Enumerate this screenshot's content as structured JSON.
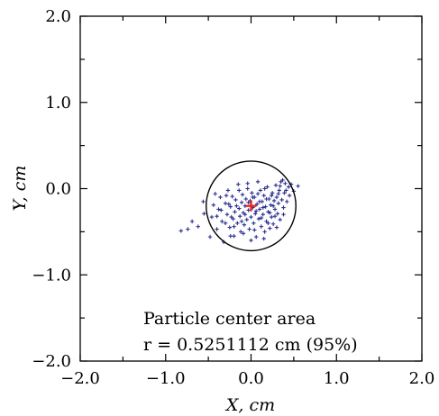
{
  "chart_data": {
    "type": "scatter",
    "xlabel": "X, cm",
    "ylabel": "Y, cm",
    "xlim": [
      -2.0,
      2.0
    ],
    "ylim": [
      -2.0,
      2.0
    ],
    "xticks": [
      "−2.0",
      "−1.0",
      "0.0",
      "1.0",
      "2.0"
    ],
    "yticks": [
      "−2.0",
      "−1.0",
      "0.0",
      "1.0",
      "2.0"
    ],
    "grid": false,
    "annotation_line1": "Particle center area",
    "annotation_line2": "r = 0.5251112 cm (95%)",
    "center": {
      "x": 0.0,
      "y": -0.2,
      "color": "#e8251f"
    },
    "circle": {
      "cx": 0.0,
      "cy": -0.2,
      "r": 0.5251112,
      "color": "#000000"
    },
    "series": [
      {
        "marker": "plus",
        "color": "#2b2f8f",
        "points": [
          [
            -0.82,
            -0.49
          ],
          [
            -0.74,
            -0.47
          ],
          [
            -0.69,
            -0.38
          ],
          [
            -0.62,
            -0.44
          ],
          [
            -0.56,
            -0.15
          ],
          [
            -0.55,
            -0.29
          ],
          [
            -0.48,
            -0.56
          ],
          [
            -0.46,
            -0.33
          ],
          [
            -0.44,
            -0.19
          ],
          [
            -0.42,
            -0.06
          ],
          [
            -0.4,
            -0.47
          ],
          [
            -0.38,
            -0.24
          ],
          [
            -0.36,
            -0.1
          ],
          [
            -0.34,
            -0.38
          ],
          [
            -0.32,
            -0.62
          ],
          [
            -0.3,
            -0.17
          ],
          [
            -0.28,
            -0.3
          ],
          [
            -0.27,
            -0.02
          ],
          [
            -0.25,
            -0.45
          ],
          [
            -0.24,
            -0.21
          ],
          [
            -0.22,
            -0.09
          ],
          [
            -0.21,
            -0.35
          ],
          [
            -0.2,
            -0.55
          ],
          [
            -0.19,
            -0.27
          ],
          [
            -0.18,
            -0.13
          ],
          [
            -0.16,
            -0.4
          ],
          [
            -0.15,
            0.05
          ],
          [
            -0.14,
            -0.23
          ],
          [
            -0.13,
            -0.32
          ],
          [
            -0.12,
            -0.5
          ],
          [
            -0.11,
            -0.16
          ],
          [
            -0.1,
            -0.07
          ],
          [
            -0.09,
            -0.28
          ],
          [
            -0.08,
            -0.42
          ],
          [
            -0.07,
            -0.2
          ],
          [
            -0.06,
            -0.12
          ],
          [
            -0.05,
            -0.36
          ],
          [
            -0.04,
            0.0
          ],
          [
            -0.03,
            -0.25
          ],
          [
            -0.02,
            -0.47
          ],
          [
            -0.01,
            -0.14
          ],
          [
            0.0,
            -0.33
          ],
          [
            0.01,
            -0.05
          ],
          [
            0.02,
            -0.22
          ],
          [
            0.03,
            -0.4
          ],
          [
            0.04,
            -0.1
          ],
          [
            0.05,
            -0.29
          ],
          [
            0.06,
            -0.56
          ],
          [
            0.07,
            -0.18
          ],
          [
            0.08,
            0.08
          ],
          [
            0.09,
            -0.35
          ],
          [
            0.1,
            -0.24
          ],
          [
            0.11,
            -0.02
          ],
          [
            0.12,
            -0.44
          ],
          [
            0.13,
            -0.15
          ],
          [
            0.14,
            -0.3
          ],
          [
            0.15,
            -0.08
          ],
          [
            0.16,
            -0.5
          ],
          [
            0.17,
            -0.21
          ],
          [
            0.18,
            -0.38
          ],
          [
            0.19,
            0.02
          ],
          [
            0.2,
            -0.27
          ],
          [
            0.21,
            -0.12
          ],
          [
            0.22,
            -0.46
          ],
          [
            0.23,
            -0.19
          ],
          [
            0.24,
            -0.33
          ],
          [
            0.25,
            -0.05
          ],
          [
            0.26,
            -0.41
          ],
          [
            0.27,
            -0.14
          ],
          [
            0.28,
            -0.24
          ],
          [
            0.29,
            0.04
          ],
          [
            0.3,
            -0.1
          ],
          [
            0.31,
            -0.29
          ],
          [
            0.32,
            -0.17
          ],
          [
            0.33,
            -0.02
          ],
          [
            0.34,
            -0.36
          ],
          [
            0.35,
            0.08
          ],
          [
            0.36,
            -0.13
          ],
          [
            0.37,
            0.1
          ],
          [
            0.38,
            -0.22
          ],
          [
            0.39,
            -0.05
          ],
          [
            0.4,
            0.06
          ],
          [
            0.42,
            -0.15
          ],
          [
            0.44,
            0.02
          ],
          [
            0.45,
            -0.08
          ],
          [
            0.47,
            0.05
          ],
          [
            0.5,
            -0.03
          ],
          [
            0.55,
            0.03
          ],
          [
            -0.3,
            -0.4
          ],
          [
            -0.26,
            -0.18
          ],
          [
            -0.23,
            -0.33
          ],
          [
            -0.17,
            -0.2
          ],
          [
            -0.11,
            -0.38
          ],
          [
            -0.07,
            -0.3
          ],
          [
            -0.03,
            -0.16
          ],
          [
            0.02,
            -0.1
          ],
          [
            0.06,
            -0.26
          ],
          [
            0.1,
            -0.15
          ],
          [
            0.14,
            -0.22
          ],
          [
            0.18,
            -0.12
          ],
          [
            0.22,
            -0.28
          ],
          [
            0.26,
            -0.2
          ],
          [
            -0.35,
            -0.25
          ],
          [
            -0.29,
            -0.08
          ],
          [
            -0.2,
            -0.44
          ],
          [
            -0.09,
            -0.52
          ],
          [
            0.04,
            -0.48
          ],
          [
            0.12,
            -0.34
          ],
          [
            0.2,
            -0.4
          ],
          [
            0.28,
            -0.32
          ],
          [
            -0.14,
            -0.02
          ],
          [
            -0.04,
            0.06
          ],
          [
            0.08,
            -0.06
          ],
          [
            0.16,
            0.0
          ],
          [
            0.24,
            -0.08
          ],
          [
            0.32,
            -0.06
          ],
          [
            -0.4,
            -0.32
          ],
          [
            -0.24,
            -0.55
          ],
          [
            0.0,
            -0.6
          ],
          [
            0.15,
            -0.58
          ],
          [
            0.3,
            -0.45
          ],
          [
            0.38,
            -0.3
          ],
          [
            0.41,
            -0.02
          ],
          [
            0.34,
            0.03
          ]
        ]
      }
    ]
  }
}
